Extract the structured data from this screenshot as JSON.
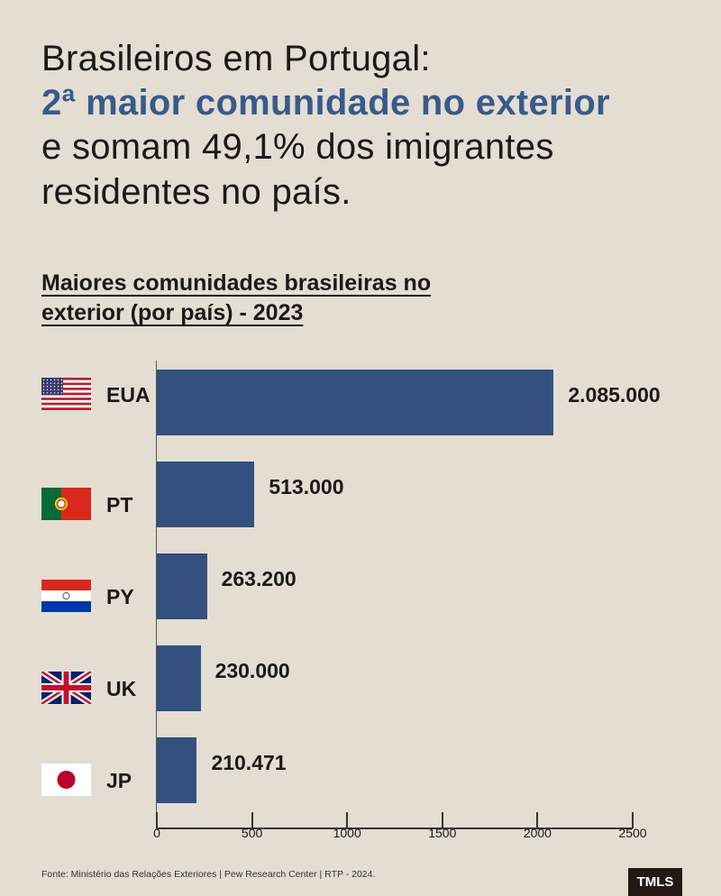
{
  "headline": {
    "line1": "Brasileiros em Portugal:",
    "line2": "2ª maior comunidade no exterior",
    "line3": "e somam 49,1% dos imigrantes",
    "line4": "residentes no país."
  },
  "chart_data": {
    "type": "bar",
    "orientation": "horizontal",
    "title": "Maiores comunidades brasileiras no exterior (por país) - 2023",
    "title_lines": [
      "Maiores comunidades brasileiras no",
      "exterior (por país) - 2023"
    ],
    "categories": [
      "EUA",
      "PT",
      "PY",
      "UK",
      "JP"
    ],
    "values": [
      2085,
      513,
      263.2,
      230,
      210.471
    ],
    "data_labels": [
      "2.085.000",
      "513.000",
      "263.200",
      "230.000",
      "210.471"
    ],
    "flags": [
      "us-flag",
      "portugal-flag",
      "paraguay-flag",
      "uk-flag",
      "japan-flag"
    ],
    "xlim": [
      0,
      2500
    ],
    "xticks": [
      0,
      500,
      1000,
      1500,
      2000,
      2500
    ],
    "xtick_labels": [
      "0",
      "500",
      "1000",
      "1500",
      "2000",
      "2500"
    ],
    "bar_color": "#33507f",
    "grid": false
  },
  "footer": {
    "source": "Fonte: Ministério das Relações Exteriores | Pew Research Center | RTP - 2024.",
    "logo": "TMLS"
  }
}
